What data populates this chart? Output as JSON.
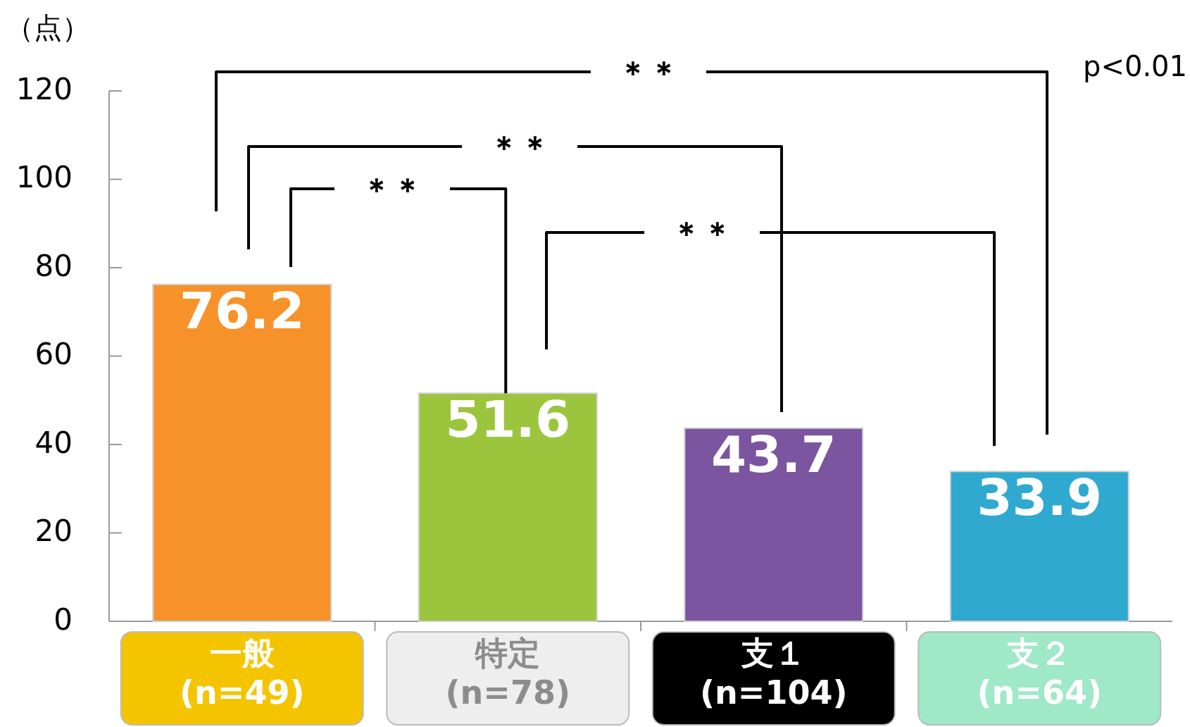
{
  "chart_data": {
    "type": "bar",
    "ylabel": "（点）",
    "categories": [
      "一般\n(n=49)",
      "特定\n(n=78)",
      "支１\n(n=104)",
      "支２\n(n=64)"
    ],
    "values": [
      76.2,
      51.6,
      43.7,
      33.9
    ],
    "colors": [
      "#f7922a",
      "#9bc53d",
      "#7b55a0",
      "#2fa9cf"
    ],
    "ylim": [
      0,
      120
    ],
    "yticks": [
      0,
      20,
      40,
      60,
      80,
      100,
      120
    ],
    "data_labels": true,
    "grid": false,
    "annotations": [
      "＊＊",
      "＊＊",
      {
        "text": "＊＊",
        "x": "特定\n(n=78)",
        "y": 51.6
      },
      "＊＊",
      "p<0.01"
    ]
  }
}
